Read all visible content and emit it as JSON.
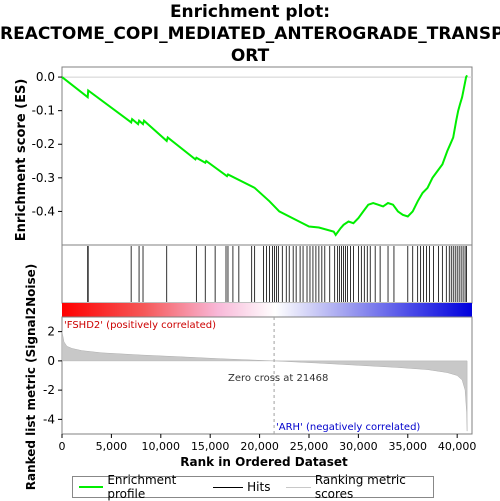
{
  "title_lines": [
    "Enrichment plot:",
    "REACTOME_COPI_MEDIATED_ANTEROGRADE_TRANSP",
    "ORT"
  ],
  "chart_data": {
    "type": "line",
    "es_panel": {
      "ylabel": "Enrichment score (ES)",
      "ylim": [
        -0.5,
        0.03
      ],
      "yticks": [
        "0.0",
        "-0.1",
        "-0.2",
        "-0.3",
        "-0.4"
      ],
      "ytick_values": [
        0.0,
        -0.1,
        -0.2,
        -0.3,
        -0.4
      ],
      "line_color": "#00ee00",
      "series": [
        {
          "name": "Enrichment profile",
          "x": [
            0,
            2600,
            2650,
            7000,
            7100,
            7700,
            7800,
            8200,
            8300,
            10600,
            10700,
            13500,
            13600,
            14500,
            14600,
            16700,
            16800,
            19500,
            21000,
            22000,
            24000,
            25000,
            26000,
            27500,
            27700,
            28200,
            28500,
            29000,
            29500,
            30000,
            30500,
            31000,
            31500,
            32000,
            32500,
            33000,
            33500,
            34000,
            34500,
            35000,
            35500,
            36000,
            36500,
            37000,
            37500,
            38000,
            38500,
            39000,
            39300,
            39600,
            39900,
            40100,
            40300,
            40500,
            40700,
            40900,
            41000
          ],
          "y": [
            0.0,
            -0.06,
            -0.04,
            -0.135,
            -0.125,
            -0.14,
            -0.13,
            -0.14,
            -0.13,
            -0.19,
            -0.18,
            -0.245,
            -0.24,
            -0.255,
            -0.25,
            -0.295,
            -0.29,
            -0.33,
            -0.37,
            -0.4,
            -0.43,
            -0.445,
            -0.448,
            -0.46,
            -0.47,
            -0.45,
            -0.44,
            -0.43,
            -0.435,
            -0.42,
            -0.4,
            -0.38,
            -0.375,
            -0.38,
            -0.385,
            -0.375,
            -0.38,
            -0.4,
            -0.41,
            -0.415,
            -0.4,
            -0.37,
            -0.345,
            -0.33,
            -0.3,
            -0.28,
            -0.26,
            -0.22,
            -0.2,
            -0.18,
            -0.13,
            -0.1,
            -0.08,
            -0.06,
            -0.03,
            0.0,
            0.005
          ]
        }
      ]
    },
    "hits": [
      2600,
      2650,
      7000,
      7800,
      8200,
      10600,
      13600,
      14500,
      15500,
      16600,
      16800,
      17300,
      17900,
      19200,
      19500,
      20400,
      20700,
      21000,
      21300,
      21500,
      21700,
      21900,
      22300,
      22700,
      23000,
      23400,
      23700,
      24100,
      24400,
      24800,
      25100,
      25400,
      25700,
      26000,
      26300,
      26600,
      27100,
      27600,
      27900,
      28100,
      28300,
      28500,
      28700,
      28900,
      29200,
      29500,
      30000,
      30300,
      30600,
      30900,
      31200,
      31700,
      32200,
      33000,
      33600,
      35000,
      35500,
      36000,
      36300,
      36600,
      36900,
      37200,
      37600,
      38100,
      38500,
      38900,
      39200,
      39400,
      39600,
      39800,
      40000,
      40200,
      40400,
      40600,
      40800,
      40950
    ],
    "rank_panel": {
      "ylabel": "Ranked list metric (Signal2Noise)",
      "xlabel": "Rank in Ordered Dataset",
      "ylim": [
        -5,
        3
      ],
      "yticks": [
        "2",
        "0",
        "-2",
        "-4"
      ],
      "ytick_values": [
        2,
        0,
        -2,
        -4
      ],
      "xticks": [
        "0",
        "5,000",
        "10,000",
        "15,000",
        "20,000",
        "25,000",
        "30,000",
        "35,000",
        "40,000"
      ],
      "xtick_values": [
        0,
        5000,
        10000,
        15000,
        20000,
        25000,
        30000,
        35000,
        40000
      ],
      "xlim": [
        0,
        41500
      ],
      "total_rank": 41000,
      "metric_profile": {
        "x": [
          0,
          200,
          500,
          1000,
          2000,
          4000,
          8000,
          12000,
          16000,
          21468,
          26000,
          30000,
          34000,
          37000,
          39000,
          40000,
          40500,
          40800,
          40950,
          41000
        ],
        "y": [
          2.0,
          1.3,
          1.0,
          0.85,
          0.7,
          0.55,
          0.4,
          0.28,
          0.15,
          0.0,
          -0.15,
          -0.3,
          -0.45,
          -0.6,
          -0.8,
          -1.0,
          -1.3,
          -2.0,
          -3.5,
          -4.8
        ]
      },
      "zero_cross_label": "Zero cross at 21468",
      "zero_cross": 21468,
      "positive_label": "'FSHD2' (positively correlated)",
      "negative_label": "'ARH' (negatively correlated)"
    },
    "legend": [
      "Enrichment profile",
      "Hits",
      "Ranking metric scores"
    ]
  },
  "colors": {
    "es_line": "#00ee00",
    "hit_line": "#000000",
    "metric_fill": "#c8c8c8",
    "positive": "#ff0000",
    "negative": "#0000ff",
    "label_pos": "#cc0000",
    "label_neg": "#0000cc"
  }
}
